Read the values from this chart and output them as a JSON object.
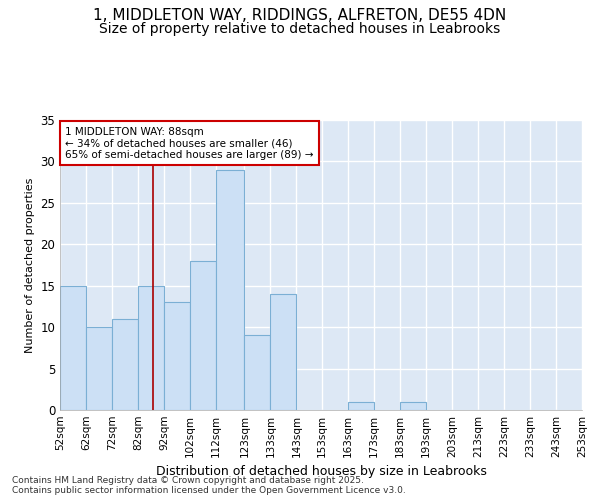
{
  "title_line1": "1, MIDDLETON WAY, RIDDINGS, ALFRETON, DE55 4DN",
  "title_line2": "Size of property relative to detached houses in Leabrooks",
  "xlabel": "Distribution of detached houses by size in Leabrooks",
  "ylabel": "Number of detached properties",
  "bar_edges": [
    52,
    62,
    72,
    82,
    92,
    102,
    112,
    123,
    133,
    143,
    153,
    163,
    173,
    183,
    193,
    203,
    213,
    223,
    233,
    243,
    253
  ],
  "bar_heights": [
    15,
    10,
    11,
    15,
    13,
    18,
    29,
    9,
    14,
    0,
    0,
    1,
    0,
    1,
    0,
    0,
    0,
    0,
    0,
    0
  ],
  "bar_color": "#cce0f5",
  "bar_edge_color": "#7bafd4",
  "property_size": 88,
  "red_line_color": "#aa0000",
  "annotation_text": "1 MIDDLETON WAY: 88sqm\n← 34% of detached houses are smaller (46)\n65% of semi-detached houses are larger (89) →",
  "annotation_box_color": "#ffffff",
  "annotation_box_edge": "#cc0000",
  "ylim": [
    0,
    35
  ],
  "yticks": [
    0,
    5,
    10,
    15,
    20,
    25,
    30,
    35
  ],
  "background_color": "#dde8f5",
  "grid_color": "#ffffff",
  "footer_line1": "Contains HM Land Registry data © Crown copyright and database right 2025.",
  "footer_line2": "Contains public sector information licensed under the Open Government Licence v3.0.",
  "tick_label_fontsize": 7.5,
  "axis_label_fontsize": 9,
  "title_fontsize1": 11,
  "title_fontsize2": 10
}
